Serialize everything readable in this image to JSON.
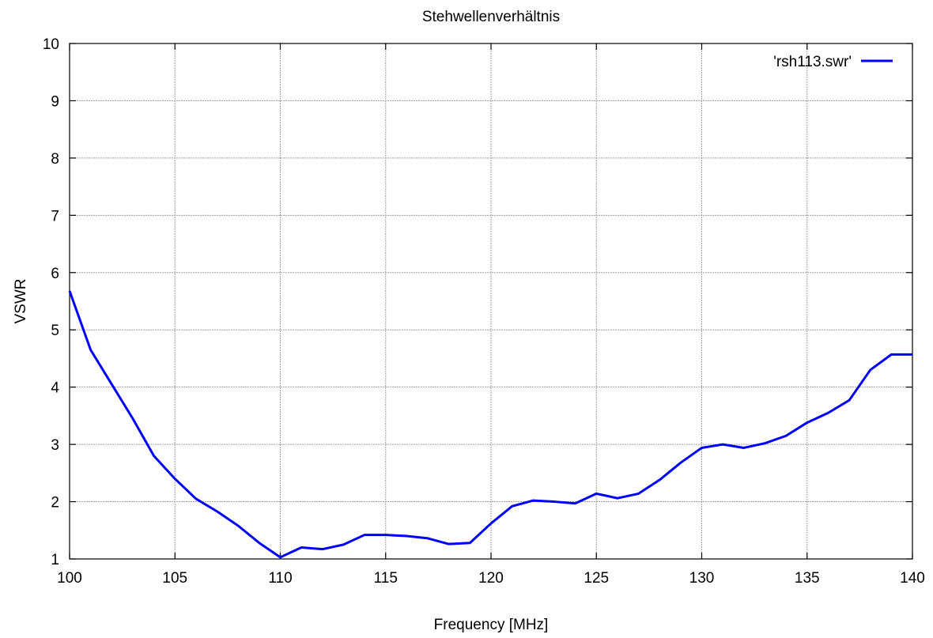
{
  "chart_data": {
    "type": "line",
    "title": "Stehwellenverhältnis",
    "xlabel": "Frequency [MHz]",
    "ylabel": "VSWR",
    "xlim": [
      100,
      140
    ],
    "ylim": [
      1,
      10
    ],
    "x_ticks": [
      100,
      105,
      110,
      115,
      120,
      125,
      130,
      135,
      140
    ],
    "y_ticks": [
      1,
      2,
      3,
      4,
      5,
      6,
      7,
      8,
      9,
      10
    ],
    "grid": true,
    "legend_position": "top-right",
    "series": [
      {
        "name": "'rsh113.swr'",
        "color": "#0000ff",
        "x": [
          100,
          101,
          102,
          103,
          104,
          105,
          106,
          107,
          108,
          109,
          110,
          111,
          112,
          113,
          114,
          115,
          116,
          117,
          118,
          119,
          120,
          121,
          122,
          123,
          124,
          125,
          126,
          127,
          128,
          129,
          130,
          131,
          132,
          133,
          134,
          135,
          136,
          137,
          138,
          139,
          140
        ],
        "y": [
          5.68,
          4.65,
          4.05,
          3.45,
          2.8,
          2.4,
          2.05,
          1.83,
          1.58,
          1.28,
          1.03,
          1.2,
          1.17,
          1.25,
          1.42,
          1.42,
          1.4,
          1.36,
          1.26,
          1.28,
          1.62,
          1.92,
          2.02,
          2.0,
          1.97,
          2.14,
          2.06,
          2.14,
          2.38,
          2.68,
          2.94,
          3.0,
          2.94,
          3.02,
          3.15,
          3.38,
          3.55,
          3.77,
          4.3,
          4.57,
          4.57
        ]
      }
    ]
  }
}
